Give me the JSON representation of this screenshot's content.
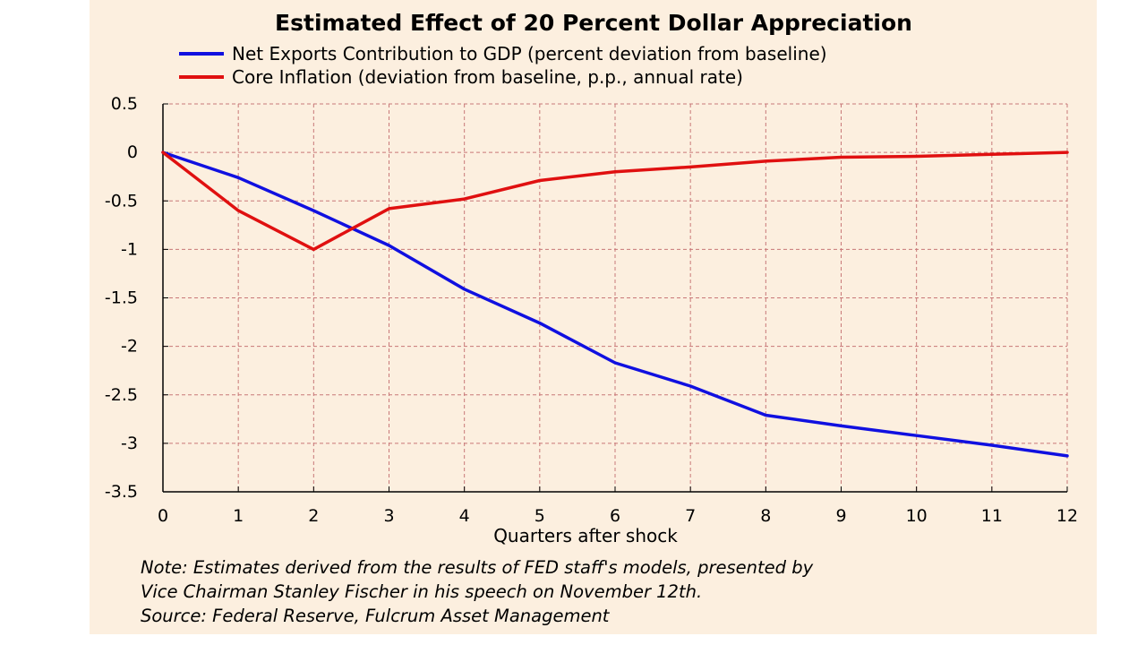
{
  "chart_data": {
    "type": "line",
    "title": "Estimated Effect of 20 Percent Dollar Appreciation",
    "xlabel": "Quarters after shock",
    "ylabel": "",
    "x": [
      0,
      1,
      2,
      3,
      4,
      5,
      6,
      7,
      8,
      9,
      10,
      11,
      12
    ],
    "xlim": [
      0,
      12
    ],
    "ylim": [
      -3.5,
      0.5
    ],
    "xticks": [
      0,
      1,
      2,
      3,
      4,
      5,
      6,
      7,
      8,
      9,
      10,
      11,
      12
    ],
    "yticks": [
      0.5,
      0,
      -0.5,
      -1,
      -1.5,
      -2,
      -2.5,
      -3,
      -3.5
    ],
    "ytick_labels": [
      "0.5",
      "0",
      "-0.5",
      "-1",
      "-1.5",
      "-2",
      "-2.5",
      "-3",
      "-3.5"
    ],
    "grid": true,
    "legend_position": "top-left",
    "series": [
      {
        "name": "Net Exports Contribution to GDP (percent deviation from baseline)",
        "color": "#1010e0",
        "values": [
          0,
          -0.26,
          -0.6,
          -0.96,
          -1.41,
          -1.76,
          -2.17,
          -2.41,
          -2.71,
          -2.82,
          -2.92,
          -3.02,
          -3.13
        ]
      },
      {
        "name": "Core Inflation (deviation from baseline, p.p., annual rate)",
        "color": "#e01010",
        "values": [
          0,
          -0.6,
          -1.0,
          -0.58,
          -0.48,
          -0.29,
          -0.2,
          -0.15,
          -0.09,
          -0.05,
          -0.04,
          -0.02,
          0
        ]
      }
    ]
  },
  "notes": {
    "line1": "Note: Estimates derived from the results of FED staff's models, presented by",
    "line2": "Vice Chairman  Stanley Fischer in his speech on November 12th.",
    "line3": "Source: Federal Reserve, Fulcrum Asset Management"
  },
  "colors": {
    "background": "#fcefdf",
    "grid": "#c87878"
  }
}
